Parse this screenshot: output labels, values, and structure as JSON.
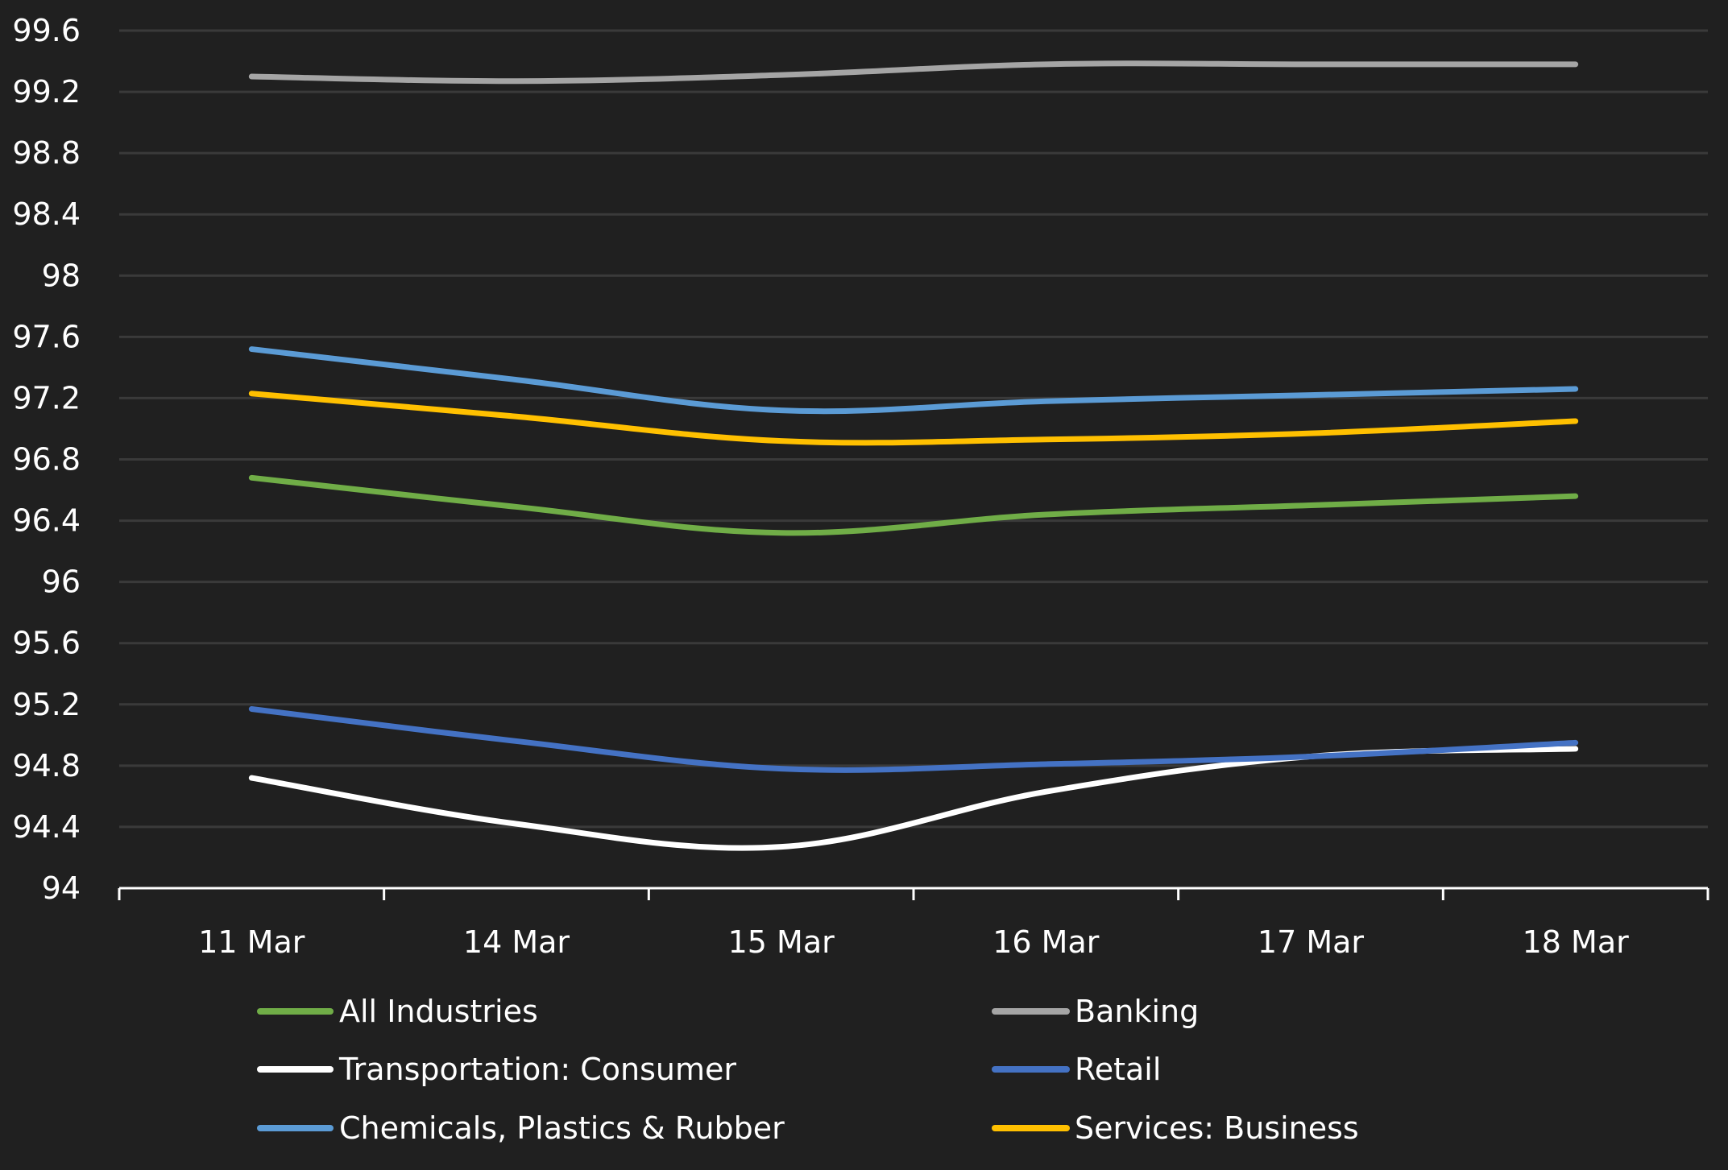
{
  "chart_data": {
    "type": "line",
    "title": "",
    "xlabel": "",
    "ylabel": "",
    "categories": [
      "11 Mar",
      "14 Mar",
      "15 Mar",
      "16 Mar",
      "17 Mar",
      "18 Mar"
    ],
    "ylim": [
      94,
      99.6
    ],
    "yticks": [
      "94",
      "94.4",
      "94.8",
      "95.2",
      "95.6",
      "96",
      "96.4",
      "96.8",
      "97.2",
      "97.6",
      "98",
      "98.4",
      "98.8",
      "99.2",
      "99.6"
    ],
    "ytick_values": [
      94,
      94.4,
      94.8,
      95.2,
      95.6,
      96,
      96.4,
      96.8,
      97.2,
      97.6,
      98,
      98.4,
      98.8,
      99.2,
      99.6
    ],
    "grid": true,
    "smooth": true,
    "legend_position": "bottom",
    "series": [
      {
        "name": "All Industries",
        "color": "#70ad47",
        "values": [
          96.68,
          96.49,
          96.32,
          96.44,
          96.5,
          96.56
        ]
      },
      {
        "name": "Banking",
        "color": "#a5a5a5",
        "values": [
          99.3,
          99.27,
          99.31,
          99.38,
          99.38,
          99.38
        ]
      },
      {
        "name": "Transportation: Consumer",
        "color": "#ffffff",
        "values": [
          94.72,
          94.42,
          94.27,
          94.63,
          94.86,
          94.91
        ]
      },
      {
        "name": "Retail",
        "color": "#4472c4",
        "values": [
          95.17,
          94.96,
          94.78,
          94.81,
          94.86,
          94.95
        ]
      },
      {
        "name": "Chemicals, Plastics & Rubber",
        "color": "#5b9bd5",
        "values": [
          97.52,
          97.32,
          97.12,
          97.18,
          97.22,
          97.26
        ]
      },
      {
        "name": "Services: Business",
        "color": "#ffc000",
        "values": [
          97.23,
          97.08,
          96.92,
          96.93,
          96.97,
          97.05
        ]
      }
    ]
  },
  "colors": {
    "background": "#202020",
    "gridline": "#3a3a3a",
    "axis": "#ffffff",
    "text": "#ffffff"
  }
}
